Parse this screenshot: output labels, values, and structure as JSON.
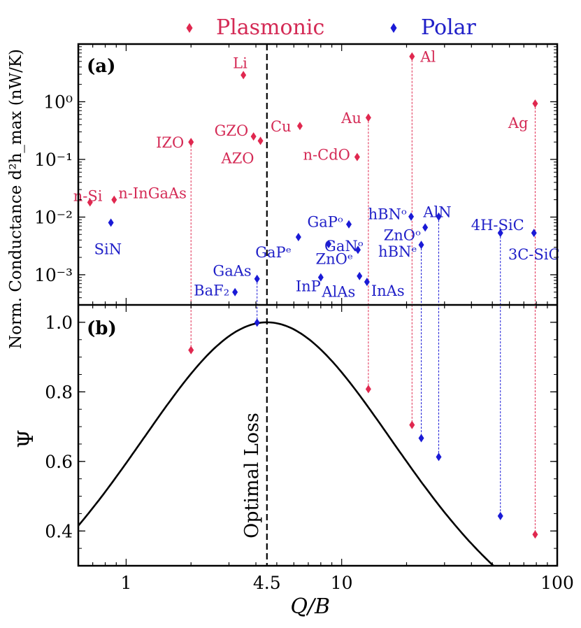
{
  "legend": {
    "plasmonic": "Plasmonic",
    "polar": "Polar"
  },
  "colors": {
    "plasmonic": "#e0284f",
    "polar": "#1a1ad6",
    "curve": "#000000"
  },
  "chart_data": [
    {
      "panel": "(a)",
      "type": "scatter",
      "xscale": "log",
      "yscale": "log",
      "xlim": [
        0.6,
        100
      ],
      "ylim": [
        0.0003,
        10
      ],
      "ylabel": "Norm. Conductance d²h_max (nW/K)",
      "yticklabels": [
        "10⁻³",
        "10⁻²",
        "10⁻¹",
        "10⁰"
      ],
      "series": [
        {
          "name": "Plasmonic",
          "points": [
            {
              "label": "n-Si",
              "x": 0.68,
              "y": 0.018
            },
            {
              "label": "n-InGaAs",
              "x": 0.88,
              "y": 0.02
            },
            {
              "label": "IZO",
              "x": 2.0,
              "y": 0.2
            },
            {
              "label": "Li",
              "x": 3.5,
              "y": 2.9
            },
            {
              "label": "GZO",
              "x": 3.9,
              "y": 0.25
            },
            {
              "label": "AZO",
              "x": 4.2,
              "y": 0.21
            },
            {
              "label": "Cu",
              "x": 6.4,
              "y": 0.38
            },
            {
              "label": "n-CdO",
              "x": 11.8,
              "y": 0.11
            },
            {
              "label": "Au",
              "x": 13.3,
              "y": 0.53
            },
            {
              "label": "Al",
              "x": 21.2,
              "y": 6.1
            },
            {
              "label": "Ag",
              "x": 79.0,
              "y": 0.93
            }
          ]
        },
        {
          "name": "Polar",
          "points": [
            {
              "label": "SiN",
              "x": 0.85,
              "y": 0.008
            },
            {
              "label": "BaF₂",
              "x": 3.2,
              "y": 0.0005
            },
            {
              "label": "GaAs",
              "x": 4.05,
              "y": 0.00085
            },
            {
              "label": "GaPᵉ",
              "x": 6.3,
              "y": 0.0045
            },
            {
              "label": "InP",
              "x": 8.0,
              "y": 0.0009
            },
            {
              "label": "GaNᵒ",
              "x": 8.7,
              "y": 0.0034
            },
            {
              "label": "GaPᵒ",
              "x": 10.8,
              "y": 0.0075
            },
            {
              "label": "ZnOᵉ",
              "x": 11.9,
              "y": 0.0027
            },
            {
              "label": "AlAs",
              "x": 12.1,
              "y": 0.00095
            },
            {
              "label": "InAs",
              "x": 13.1,
              "y": 0.00075
            },
            {
              "label": "hBNᵒ",
              "x": 21.0,
              "y": 0.0102
            },
            {
              "label": "hBNᵉ",
              "x": 23.4,
              "y": 0.0033
            },
            {
              "label": "ZnOᵒ",
              "x": 24.4,
              "y": 0.0066
            },
            {
              "label": "AlN",
              "x": 28.2,
              "y": 0.0102
            },
            {
              "label": "4H-SiC",
              "x": 54.5,
              "y": 0.0053
            },
            {
              "label": "3C-SiC",
              "x": 78.0,
              "y": 0.0053
            }
          ]
        }
      ]
    },
    {
      "panel": "(b)",
      "type": "line",
      "xscale": "log",
      "xlim": [
        0.6,
        100
      ],
      "ylim": [
        0.3,
        1.05
      ],
      "xlabel": "Q/B",
      "ylabel": "Ψ",
      "xticklabels": [
        "1",
        "4.5",
        "10",
        "100"
      ],
      "yticklabels": [
        "0.4",
        "0.6",
        "0.8",
        "1.0"
      ],
      "annotation": "Optimal Loss",
      "optimal_x": 4.5,
      "curve": {
        "name": "Ψ(Q/B)",
        "formula": "4r/(1+r)^2, r = (Q/B)/4.5"
      },
      "series": [
        {
          "name": "Plasmonic",
          "points": [
            {
              "label": "IZO",
              "x": 2.0,
              "y": 0.92
            },
            {
              "label": "Au",
              "x": 13.3,
              "y": 0.808
            },
            {
              "label": "Al",
              "x": 21.2,
              "y": 0.705
            },
            {
              "label": "Ag",
              "x": 79.0,
              "y": 0.39
            }
          ]
        },
        {
          "name": "Polar",
          "points": [
            {
              "label": "GaAs",
              "x": 4.05,
              "y": 0.999
            },
            {
              "label": "hBNᵉ",
              "x": 23.4,
              "y": 0.667
            },
            {
              "label": "AlN",
              "x": 28.2,
              "y": 0.613
            },
            {
              "label": "4H-SiC",
              "x": 54.5,
              "y": 0.443
            }
          ]
        }
      ],
      "connectors": [
        {
          "series": "Plasmonic",
          "x": 2.0,
          "from_a_y": 0.2,
          "to_b_y": 0.92
        },
        {
          "series": "Plasmonic",
          "x": 13.3,
          "from_a_y": 0.53,
          "to_b_y": 0.808
        },
        {
          "series": "Plasmonic",
          "x": 21.2,
          "from_a_y": 6.1,
          "to_b_y": 0.705
        },
        {
          "series": "Plasmonic",
          "x": 79.0,
          "from_a_y": 0.93,
          "to_b_y": 0.39
        },
        {
          "series": "Polar",
          "x": 4.05,
          "from_a_y": 0.00085,
          "to_b_y": 0.999
        },
        {
          "series": "Polar",
          "x": 23.4,
          "from_a_y": 0.0033,
          "to_b_y": 0.667
        },
        {
          "series": "Polar",
          "x": 28.2,
          "from_a_y": 0.0102,
          "to_b_y": 0.613
        },
        {
          "series": "Polar",
          "x": 54.5,
          "from_a_y": 0.0053,
          "to_b_y": 0.443
        }
      ]
    }
  ]
}
